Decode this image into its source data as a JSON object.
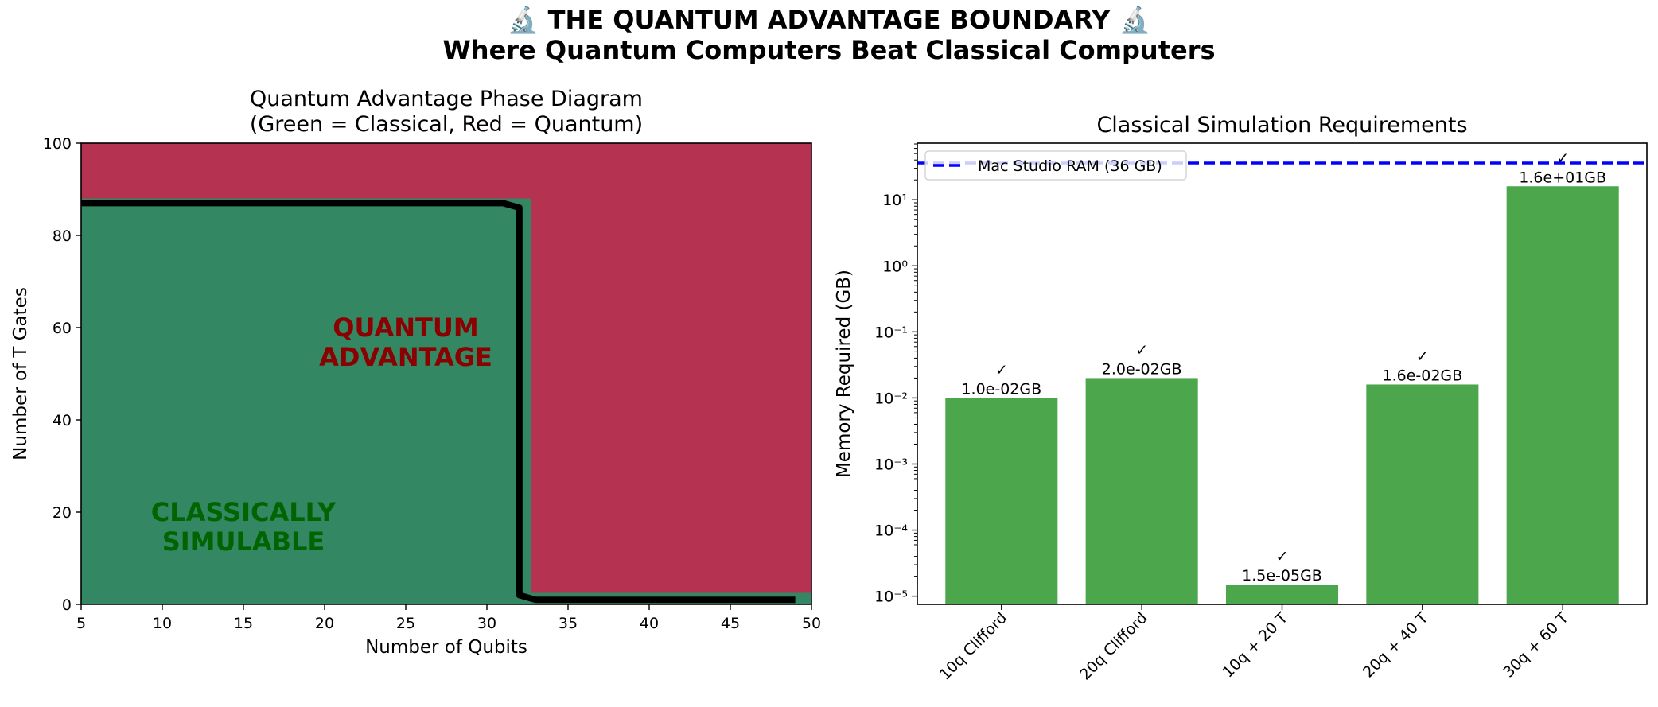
{
  "suptitle": {
    "line1": "🔬 THE QUANTUM ADVANTAGE BOUNDARY 🔬",
    "line2": "Where Quantum Computers Beat Classical Computers"
  },
  "colors": {
    "classical": "#348763",
    "quantum": "#b53350",
    "boundary": "#000000",
    "bar": "#4ca64c",
    "ram_line": "#0000ff",
    "quantum_text": "#8b0000",
    "classical_text": "#006400"
  },
  "chart_data": [
    {
      "type": "heatmap",
      "title": "Quantum Advantage Phase Diagram\n(Green = Classical, Red = Quantum)",
      "xlabel": "Number of Qubits",
      "ylabel": "Number of T Gates",
      "xlim": [
        5,
        50
      ],
      "ylim": [
        0,
        100
      ],
      "xticks": [
        "5",
        "10",
        "15",
        "20",
        "25",
        "30",
        "35",
        "40",
        "45",
        "50"
      ],
      "yticks": [
        "0",
        "20",
        "40",
        "60",
        "80",
        "100"
      ],
      "regions": [
        {
          "name": "classical",
          "label": "CLASSICALLY\nSIMULABLE"
        },
        {
          "name": "quantum",
          "label": "QUANTUM\nADVANTAGE"
        }
      ],
      "classical_region": {
        "qubits_max": 32,
        "t_gates_max": 88
      },
      "boundary": {
        "x": [
          5,
          31,
          32,
          32,
          33,
          49
        ],
        "y": [
          87,
          87,
          86,
          2,
          1,
          1
        ]
      },
      "annotations": [
        {
          "text": "QUANTUM\nADVANTAGE",
          "x": 25,
          "y": 55
        },
        {
          "text": "CLASSICALLY\nSIMULABLE",
          "x": 15,
          "y": 15
        }
      ]
    },
    {
      "type": "bar",
      "title": "Classical Simulation Requirements",
      "ylabel": "Memory Required (GB)",
      "yscale": "log",
      "ylim": [
        7.5e-06,
        72
      ],
      "yticks": [
        "10⁻⁵",
        "10⁻⁴",
        "10⁻³",
        "10⁻²",
        "10⁻¹",
        "10⁰",
        "10¹"
      ],
      "categories": [
        "10q Clifford",
        "20q Clifford",
        "10q + 20 T",
        "20q + 40 T",
        "30q + 60 T"
      ],
      "values": [
        0.01,
        0.02,
        1.5e-05,
        0.016,
        16
      ],
      "data_labels": [
        "1.0e-02GB",
        "2.0e-02GB",
        "1.5e-05GB",
        "1.6e-02GB",
        "1.6e+01GB"
      ],
      "status_marks": [
        "✓",
        "✓",
        "✓",
        "✓",
        "✓"
      ],
      "reference_line": {
        "label": "Mac Studio RAM (36 GB)",
        "value": 36
      },
      "legend_position": "upper-left"
    }
  ]
}
